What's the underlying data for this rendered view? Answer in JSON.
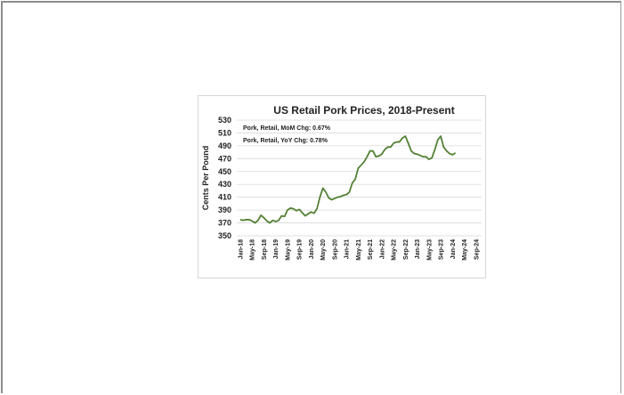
{
  "chart_data": {
    "type": "line",
    "title": "US Retail Pork Prices, 2018-Present",
    "ylabel": "Cents Per Pound",
    "xlabel": "",
    "ylim": [
      350,
      530
    ],
    "yticks": [
      350,
      370,
      390,
      410,
      430,
      450,
      470,
      490,
      510,
      530
    ],
    "xticks": [
      "Jan-18",
      "May-18",
      "Sep-18",
      "Jan-19",
      "May-19",
      "Sep-19",
      "Jan-20",
      "May-20",
      "Sep-20",
      "Jan-21",
      "May-21",
      "Sep-21",
      "Jan-22",
      "May-22",
      "Sep-22",
      "Jan-23",
      "May-23",
      "Sep-23",
      "Jan-24",
      "May-24",
      "Sep-24"
    ],
    "grid": true,
    "line_color": "#538135",
    "annotations": [
      "Pork, Retail, MoM Chg: 0.67%",
      "Pork, Retail, YoY Chg: 0.78%"
    ],
    "series": [
      {
        "name": "",
        "x": [
          "2018-01",
          "2018-02",
          "2018-03",
          "2018-04",
          "2018-05",
          "2018-06",
          "2018-07",
          "2018-08",
          "2018-09",
          "2018-10",
          "2018-11",
          "2018-12",
          "2019-01",
          "2019-02",
          "2019-03",
          "2019-04",
          "2019-05",
          "2019-06",
          "2019-07",
          "2019-08",
          "2019-09",
          "2019-10",
          "2019-11",
          "2019-12",
          "2020-01",
          "2020-02",
          "2020-03",
          "2020-04",
          "2020-05",
          "2020-06",
          "2020-07",
          "2020-08",
          "2020-09",
          "2020-10",
          "2020-11",
          "2020-12",
          "2021-01",
          "2021-02",
          "2021-03",
          "2021-04",
          "2021-05",
          "2021-06",
          "2021-07",
          "2021-08",
          "2021-09",
          "2021-10",
          "2021-11",
          "2021-12",
          "2022-01",
          "2022-02",
          "2022-03",
          "2022-04",
          "2022-05",
          "2022-06",
          "2022-07",
          "2022-08",
          "2022-09",
          "2022-10",
          "2022-11",
          "2022-12",
          "2023-01",
          "2023-02",
          "2023-03",
          "2023-04",
          "2023-05",
          "2023-06",
          "2023-07",
          "2023-08",
          "2023-09",
          "2023-10",
          "2023-11",
          "2023-12",
          "2024-01",
          "2024-02"
        ],
        "values": [
          375,
          374,
          375,
          375,
          373,
          370,
          374,
          382,
          378,
          373,
          370,
          374,
          372,
          374,
          381,
          380,
          390,
          393,
          392,
          389,
          391,
          386,
          381,
          384,
          387,
          385,
          392,
          410,
          424,
          418,
          409,
          406,
          408,
          410,
          411,
          413,
          414,
          418,
          432,
          438,
          455,
          460,
          465,
          473,
          482,
          482,
          473,
          474,
          477,
          484,
          488,
          488,
          494,
          496,
          496,
          502,
          505,
          494,
          482,
          478,
          477,
          475,
          473,
          473,
          469,
          471,
          484,
          499,
          505,
          488,
          482,
          478,
          476,
          479
        ]
      }
    ]
  }
}
